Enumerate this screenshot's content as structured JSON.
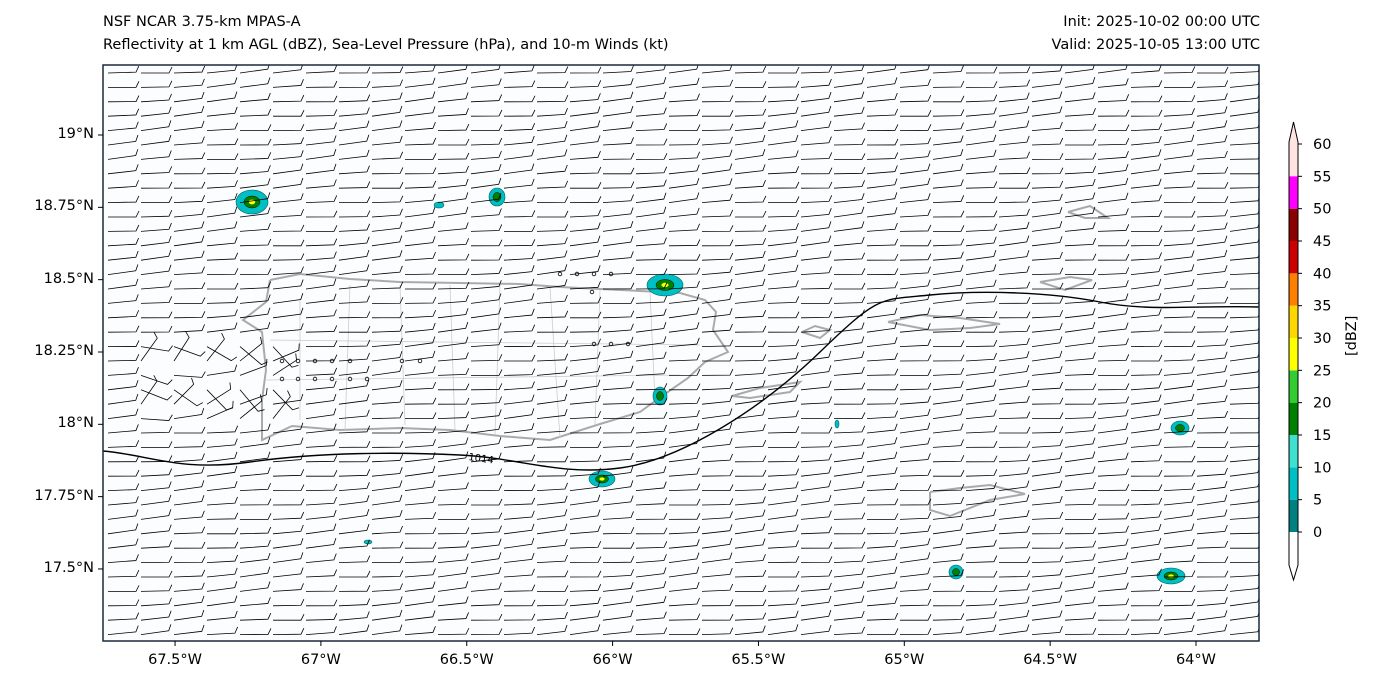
{
  "header": {
    "model": "NSF NCAR 3.75-km MPAS-A",
    "fields": "Reflectivity at 1 km AGL (dBZ), Sea-Level Pressure (hPa), and 10-m Winds (kt)",
    "init": "Init: 2025-10-02 00:00 UTC",
    "valid": "Valid: 2025-10-05 13:00 UTC"
  },
  "axes": {
    "lon_ticks": [
      {
        "value": -67.5,
        "label": "67.5°W"
      },
      {
        "value": -67,
        "label": "67°W"
      },
      {
        "value": -66.5,
        "label": "66.5°W"
      },
      {
        "value": -66,
        "label": "66°W"
      },
      {
        "value": -65.5,
        "label": "65.5°W"
      },
      {
        "value": -65,
        "label": "65°W"
      },
      {
        "value": -64.5,
        "label": "64.5°W"
      },
      {
        "value": -64,
        "label": "64°W"
      }
    ],
    "lat_ticks": [
      {
        "value": 19,
        "label": "19°N"
      },
      {
        "value": 18.75,
        "label": "18.75°N"
      },
      {
        "value": 18.5,
        "label": "18.5°N"
      },
      {
        "value": 18.25,
        "label": "18.25°N"
      },
      {
        "value": 18,
        "label": "18°N"
      },
      {
        "value": 17.75,
        "label": "17.75°N"
      },
      {
        "value": 17.5,
        "label": "17.5°N"
      }
    ],
    "lon_range": [
      -67.747,
      -63.784
    ],
    "lat_range": [
      17.251,
      19.242
    ]
  },
  "isobar": {
    "label": "1014"
  },
  "colorbar": {
    "label": "[dBZ]",
    "levels": [
      0,
      5,
      10,
      15,
      20,
      25,
      30,
      35,
      40,
      45,
      50,
      55,
      60
    ],
    "colors": [
      "#008080",
      "#00bfc4",
      "#40e0d0",
      "#008000",
      "#32cd32",
      "#ffff00",
      "#ffd700",
      "#ff8000",
      "#cc0000",
      "#8b0000",
      "#ff00ff",
      "#ffe4e1"
    ],
    "under_color": "#ffffff",
    "over_color": "#ffe4e1"
  }
}
